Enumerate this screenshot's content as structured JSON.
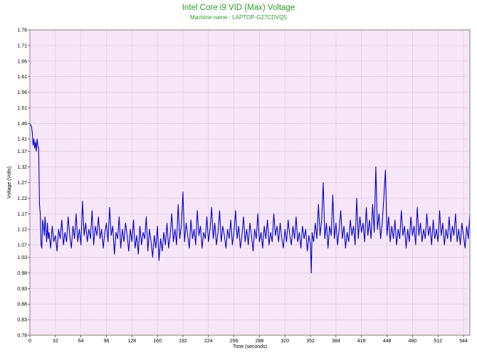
{
  "chart_data": {
    "type": "line",
    "title": "Intel Core i9 VID (Max) Voltage",
    "subtitle": "Machine name : LAPTOP-G27CDVQ5",
    "xlabel": "Time (seconds)",
    "ylabel": "Voltage (Volts)",
    "xlim": [
      0,
      552
    ],
    "ylim": [
      0.78,
      1.76
    ],
    "x_ticks": [
      0,
      32,
      64,
      96,
      128,
      160,
      192,
      224,
      256,
      288,
      320,
      352,
      384,
      416,
      448,
      480,
      512,
      544
    ],
    "y_ticks": [
      "0.78",
      "0.83",
      "0.88",
      "0.93",
      "0.98",
      "1.03",
      "1.07",
      "1.12",
      "1.17",
      "1.22",
      "1.27",
      "1.32",
      "1.37",
      "1.41",
      "1.46",
      "1.51",
      "1.56",
      "1.61",
      "1.66",
      "1.71",
      "1.76"
    ],
    "grid": true,
    "colors": {
      "line": "#0000cc",
      "plot_bg": "#f7e6f7",
      "grid": "#c0a8c0",
      "title": "#2e9a2e"
    },
    "series": [
      {
        "values": [
          [
            0,
            1.46
          ],
          [
            1,
            1.455
          ],
          [
            2,
            1.45
          ],
          [
            3,
            1.43
          ],
          [
            4,
            1.39
          ],
          [
            5,
            1.41
          ],
          [
            6,
            1.38
          ],
          [
            7,
            1.4
          ],
          [
            8,
            1.37
          ],
          [
            9,
            1.41
          ],
          [
            10,
            1.39
          ],
          [
            11,
            1.38
          ],
          [
            12,
            1.2
          ],
          [
            13,
            1.17
          ],
          [
            14,
            1.07
          ],
          [
            15,
            1.06
          ],
          [
            16,
            1.15
          ],
          [
            17,
            1.13
          ],
          [
            18,
            1.1
          ],
          [
            19,
            1.16
          ],
          [
            20,
            1.12
          ],
          [
            21,
            1.08
          ],
          [
            22,
            1.14
          ],
          [
            23,
            1.09
          ],
          [
            24,
            1.11
          ],
          [
            26,
            1.06
          ],
          [
            28,
            1.13
          ],
          [
            30,
            1.08
          ],
          [
            32,
            1.1
          ],
          [
            34,
            1.05
          ],
          [
            36,
            1.12
          ],
          [
            38,
            1.09
          ],
          [
            40,
            1.15
          ],
          [
            42,
            1.07
          ],
          [
            44,
            1.11
          ],
          [
            46,
            1.08
          ],
          [
            48,
            1.16
          ],
          [
            50,
            1.1
          ],
          [
            52,
            1.06
          ],
          [
            54,
            1.13
          ],
          [
            56,
            1.09
          ],
          [
            58,
            1.17
          ],
          [
            60,
            1.08
          ],
          [
            62,
            1.12
          ],
          [
            64,
            1.07
          ],
          [
            66,
            1.21
          ],
          [
            68,
            1.1
          ],
          [
            70,
            1.14
          ],
          [
            72,
            1.08
          ],
          [
            74,
            1.12
          ],
          [
            76,
            1.09
          ],
          [
            78,
            1.18
          ],
          [
            80,
            1.07
          ],
          [
            82,
            1.13
          ],
          [
            84,
            1.1
          ],
          [
            86,
            1.16
          ],
          [
            88,
            1.09
          ],
          [
            90,
            1.12
          ],
          [
            92,
            1.06
          ],
          [
            94,
            1.11
          ],
          [
            96,
            1.14
          ],
          [
            98,
            1.08
          ],
          [
            100,
            1.19
          ],
          [
            102,
            1.1
          ],
          [
            104,
            1.13
          ],
          [
            106,
            1.04
          ],
          [
            108,
            1.11
          ],
          [
            110,
            1.09
          ],
          [
            112,
            1.16
          ],
          [
            114,
            1.06
          ],
          [
            116,
            1.12
          ],
          [
            118,
            1.08
          ],
          [
            120,
            1.14
          ],
          [
            122,
            1.1
          ],
          [
            124,
            1.05
          ],
          [
            126,
            1.12
          ],
          [
            128,
            1.08
          ],
          [
            130,
            1.15
          ],
          [
            132,
            1.06
          ],
          [
            134,
            1.1
          ],
          [
            136,
            1.04
          ],
          [
            138,
            1.13
          ],
          [
            140,
            1.07
          ],
          [
            142,
            1.11
          ],
          [
            144,
            1.09
          ],
          [
            146,
            1.16
          ],
          [
            148,
            1.05
          ],
          [
            150,
            1.12
          ],
          [
            152,
            1.08
          ],
          [
            154,
            1.03
          ],
          [
            156,
            1.1
          ],
          [
            158,
            1.06
          ],
          [
            160,
            1.13
          ],
          [
            162,
            1.02
          ],
          [
            164,
            1.09
          ],
          [
            166,
            1.05
          ],
          [
            168,
            1.11
          ],
          [
            170,
            1.07
          ],
          [
            172,
            1.14
          ],
          [
            174,
            1.06
          ],
          [
            176,
            1.1
          ],
          [
            178,
            1.17
          ],
          [
            180,
            1.08
          ],
          [
            182,
            1.12
          ],
          [
            184,
            1.07
          ],
          [
            186,
            1.2
          ],
          [
            188,
            1.09
          ],
          [
            190,
            1.13
          ],
          [
            192,
            1.24
          ],
          [
            194,
            1.08
          ],
          [
            196,
            1.14
          ],
          [
            198,
            1.1
          ],
          [
            200,
            1.06
          ],
          [
            202,
            1.15
          ],
          [
            204,
            1.09
          ],
          [
            206,
            1.12
          ],
          [
            208,
            1.07
          ],
          [
            210,
            1.18
          ],
          [
            212,
            1.1
          ],
          [
            214,
            1.13
          ],
          [
            216,
            1.06
          ],
          [
            218,
            1.11
          ],
          [
            220,
            1.09
          ],
          [
            222,
            1.16
          ],
          [
            224,
            1.08
          ],
          [
            226,
            1.12
          ],
          [
            228,
            1.19
          ],
          [
            230,
            1.09
          ],
          [
            232,
            1.14
          ],
          [
            234,
            1.07
          ],
          [
            236,
            1.11
          ],
          [
            238,
            1.18
          ],
          [
            240,
            1.08
          ],
          [
            242,
            1.13
          ],
          [
            244,
            1.1
          ],
          [
            246,
            1.06
          ],
          [
            248,
            1.12
          ],
          [
            250,
            1.09
          ],
          [
            252,
            1.15
          ],
          [
            254,
            1.07
          ],
          [
            256,
            1.11
          ],
          [
            258,
            1.18
          ],
          [
            260,
            1.09
          ],
          [
            262,
            1.13
          ],
          [
            264,
            1.06
          ],
          [
            266,
            1.1
          ],
          [
            268,
            1.16
          ],
          [
            270,
            1.08
          ],
          [
            272,
            1.12
          ],
          [
            274,
            1.07
          ],
          [
            276,
            1.14
          ],
          [
            278,
            1.1
          ],
          [
            280,
            1.05
          ],
          [
            282,
            1.12
          ],
          [
            284,
            1.09
          ],
          [
            286,
            1.17
          ],
          [
            288,
            1.08
          ],
          [
            290,
            1.11
          ],
          [
            292,
            1.06
          ],
          [
            294,
            1.13
          ],
          [
            296,
            1.09
          ],
          [
            298,
            1.15
          ],
          [
            300,
            1.07
          ],
          [
            302,
            1.11
          ],
          [
            304,
            1.08
          ],
          [
            306,
            1.17
          ],
          [
            308,
            1.1
          ],
          [
            310,
            1.13
          ],
          [
            312,
            1.08
          ],
          [
            314,
            1.14
          ],
          [
            316,
            1.09
          ],
          [
            318,
            1.06
          ],
          [
            320,
            1.12
          ],
          [
            322,
            1.08
          ],
          [
            324,
            1.15
          ],
          [
            326,
            1.1
          ],
          [
            328,
            1.07
          ],
          [
            330,
            1.13
          ],
          [
            332,
            1.09
          ],
          [
            334,
            1.16
          ],
          [
            336,
            1.08
          ],
          [
            338,
            1.11
          ],
          [
            340,
            1.06
          ],
          [
            342,
            1.13
          ],
          [
            344,
            1.09
          ],
          [
            346,
            1.12
          ],
          [
            348,
            1.05
          ],
          [
            350,
            1.1
          ],
          [
            352,
            1.07
          ],
          [
            353,
            0.98
          ],
          [
            354,
            1.11
          ],
          [
            356,
            1.08
          ],
          [
            358,
            1.14
          ],
          [
            360,
            1.09
          ],
          [
            362,
            1.2
          ],
          [
            364,
            1.1
          ],
          [
            366,
            1.15
          ],
          [
            368,
            1.27
          ],
          [
            370,
            1.09
          ],
          [
            372,
            1.14
          ],
          [
            374,
            1.06
          ],
          [
            376,
            1.13
          ],
          [
            378,
            1.1
          ],
          [
            380,
            1.23
          ],
          [
            382,
            1.09
          ],
          [
            384,
            1.14
          ],
          [
            386,
            1.07
          ],
          [
            388,
            1.12
          ],
          [
            390,
            1.18
          ],
          [
            392,
            1.09
          ],
          [
            394,
            1.13
          ],
          [
            396,
            1.06
          ],
          [
            398,
            1.11
          ],
          [
            400,
            1.08
          ],
          [
            402,
            1.15
          ],
          [
            404,
            1.1
          ],
          [
            406,
            1.13
          ],
          [
            408,
            1.07
          ],
          [
            410,
            1.22
          ],
          [
            412,
            1.09
          ],
          [
            414,
            1.16
          ],
          [
            416,
            1.11
          ],
          [
            418,
            1.14
          ],
          [
            420,
            1.08
          ],
          [
            422,
            1.19
          ],
          [
            424,
            1.1
          ],
          [
            426,
            1.15
          ],
          [
            428,
            1.09
          ],
          [
            430,
            1.2
          ],
          [
            432,
            1.11
          ],
          [
            434,
            1.32
          ],
          [
            436,
            1.12
          ],
          [
            438,
            1.17
          ],
          [
            440,
            1.09
          ],
          [
            442,
            1.14
          ],
          [
            444,
            1.22
          ],
          [
            446,
            1.31
          ],
          [
            448,
            1.1
          ],
          [
            450,
            1.16
          ],
          [
            452,
            1.08
          ],
          [
            454,
            1.13
          ],
          [
            456,
            1.09
          ],
          [
            458,
            1.15
          ],
          [
            460,
            1.07
          ],
          [
            462,
            1.12
          ],
          [
            464,
            1.09
          ],
          [
            466,
            1.18
          ],
          [
            468,
            1.1
          ],
          [
            470,
            1.13
          ],
          [
            472,
            1.06
          ],
          [
            474,
            1.12
          ],
          [
            476,
            1.08
          ],
          [
            478,
            1.16
          ],
          [
            480,
            1.1
          ],
          [
            482,
            1.13
          ],
          [
            484,
            1.07
          ],
          [
            486,
            1.19
          ],
          [
            488,
            1.1
          ],
          [
            490,
            1.14
          ],
          [
            492,
            1.08
          ],
          [
            494,
            1.12
          ],
          [
            496,
            1.09
          ],
          [
            498,
            1.17
          ],
          [
            500,
            1.1
          ],
          [
            502,
            1.13
          ],
          [
            504,
            1.07
          ],
          [
            506,
            1.15
          ],
          [
            508,
            1.09
          ],
          [
            510,
            1.12
          ],
          [
            512,
            1.08
          ],
          [
            514,
            1.18
          ],
          [
            516,
            1.1
          ],
          [
            518,
            1.14
          ],
          [
            520,
            1.07
          ],
          [
            522,
            1.12
          ],
          [
            524,
            1.09
          ],
          [
            526,
            1.16
          ],
          [
            528,
            1.08
          ],
          [
            530,
            1.13
          ],
          [
            532,
            1.1
          ],
          [
            534,
            1.17
          ],
          [
            536,
            1.08
          ],
          [
            538,
            1.12
          ],
          [
            540,
            1.07
          ],
          [
            542,
            1.14
          ],
          [
            544,
            1.1
          ],
          [
            546,
            1.06
          ],
          [
            548,
            1.13
          ],
          [
            550,
            1.09
          ],
          [
            552,
            1.17
          ]
        ]
      }
    ]
  }
}
